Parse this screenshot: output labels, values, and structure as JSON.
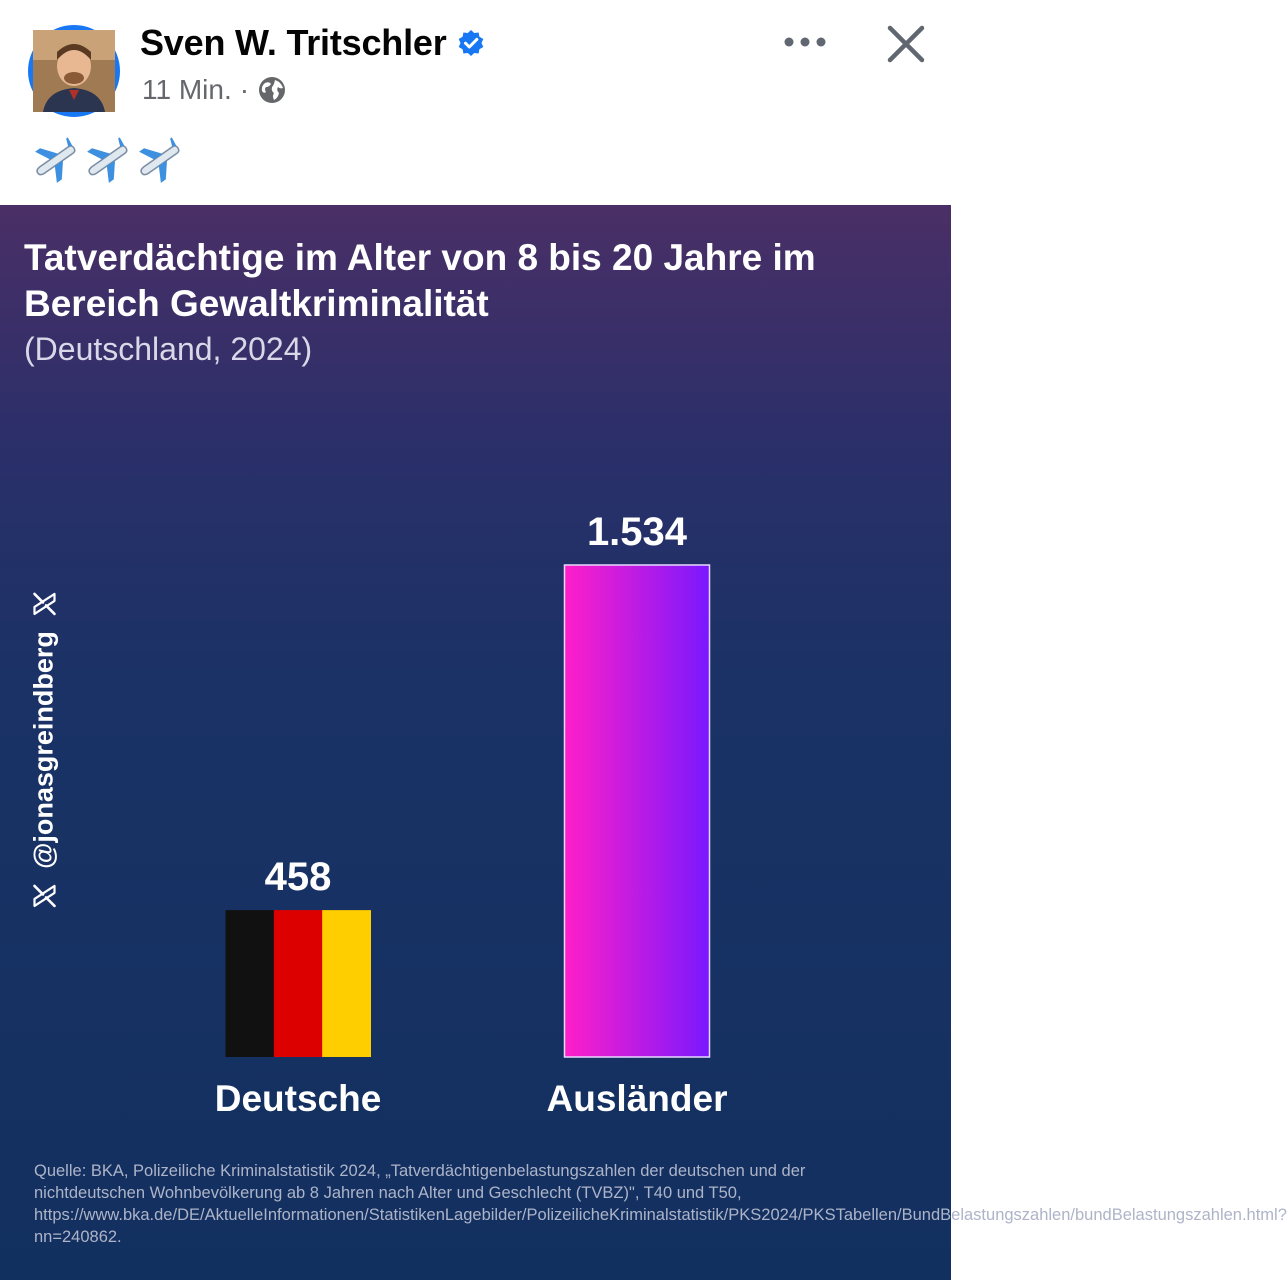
{
  "post": {
    "author_name": "Sven W. Tritschler",
    "time": "11 Min.",
    "separator": "·",
    "icons": [
      "verified-badge-icon",
      "globe-icon",
      "more-options-icon",
      "close-icon",
      "airplane-icon"
    ],
    "text_emojis": [
      "✈️",
      "✈️",
      "✈️"
    ]
  },
  "colors": {
    "facebook_blue": "#1877f2",
    "flag_black": "#111111",
    "flag_red": "#dd0000",
    "flag_gold": "#ffce00",
    "bar_gradient_start": "#ff1fc8",
    "bar_gradient_end": "#7a18ff"
  },
  "infographic": {
    "title": "Tatverdächtige im Alter von 8 bis 20 Jahre im Bereich Gewaltkriminalität",
    "subtitle": "(Deutschland, 2024)",
    "watermark": "@jonasgreindberg",
    "source": "Quelle: BKA, Polizeiliche Kriminalstatistik 2024, „Tatverdächtigenbelastungszahlen der deutschen und der nichtdeutschen Wohnbevölkerung ab 8 Jahren nach Alter und Geschlecht (TVBZ)\", T40 und T50, https://www.bka.de/DE/AktuelleInformationen/StatistikenLagebilder/PolizeilicheKriminalstatistik/PKS2024/PKSTabellen/BundBelastungszahlen/bundBelastungszahlen.html?nn=240862."
  },
  "chart_data": {
    "type": "bar",
    "title": "Tatverdächtige im Alter von 8 bis 20 Jahre im Bereich Gewaltkriminalität",
    "subtitle": "(Deutschland, 2024)",
    "categories": [
      "Deutsche",
      "Ausländer"
    ],
    "values": [
      458,
      1534
    ],
    "data_labels": [
      "458",
      "1.534"
    ],
    "bar_styles": [
      "german-flag",
      "pink-purple-gradient"
    ],
    "ylim": [
      0,
      1534
    ],
    "grid": false,
    "legend": "none"
  }
}
